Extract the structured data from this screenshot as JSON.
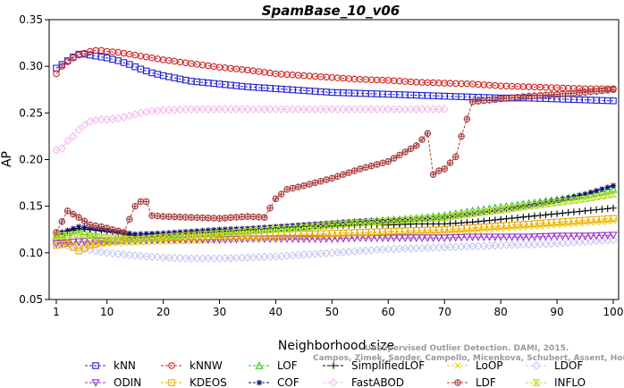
{
  "chart_data": {
    "type": "line",
    "title": "SpamBase_10_v06",
    "xlabel": "Neighborhood size",
    "ylabel": "AP",
    "xlim": [
      1,
      100
    ],
    "ylim": [
      0.05,
      0.35
    ],
    "xticks": [
      1,
      10,
      20,
      30,
      40,
      50,
      60,
      70,
      80,
      90,
      100
    ],
    "xtick_labels": [
      "1",
      "10",
      "20",
      "30",
      "40",
      "50",
      "60",
      "70",
      "80",
      "90",
      "100"
    ],
    "yticks": [
      0.05,
      0.1,
      0.15,
      0.2,
      0.25,
      0.3,
      0.35
    ],
    "ytick_labels": [
      "0.05",
      "0.10",
      "0.15",
      "0.20",
      "0.25",
      "0.30",
      "0.35"
    ],
    "grid": false,
    "legend_position": "bottom",
    "watermark_lines": [
      "Unsupervised Outlier Detection. DAMI, 2015.",
      "Campos, Zimek, Sander, Campello, Micenkova, Schubert, Assent, Houle"
    ],
    "series": [
      {
        "name": "kNN",
        "color": "#1f1fd6",
        "marker": "square",
        "x": [
          1,
          2,
          3,
          4,
          5,
          6,
          7,
          8,
          9,
          10,
          12,
          14,
          16,
          18,
          20,
          25,
          30,
          35,
          40,
          45,
          50,
          55,
          60,
          65,
          70,
          75,
          80,
          85,
          90,
          95,
          100
        ],
        "values": [
          0.298,
          0.302,
          0.306,
          0.31,
          0.313,
          0.313,
          0.312,
          0.311,
          0.31,
          0.309,
          0.306,
          0.302,
          0.297,
          0.293,
          0.29,
          0.284,
          0.281,
          0.278,
          0.276,
          0.274,
          0.272,
          0.271,
          0.27,
          0.269,
          0.268,
          0.267,
          0.266,
          0.266,
          0.265,
          0.264,
          0.263
        ]
      },
      {
        "name": "kNNW",
        "color": "#d41f1f",
        "marker": "circle",
        "x": [
          1,
          2,
          3,
          4,
          5,
          6,
          7,
          8,
          9,
          10,
          12,
          14,
          16,
          18,
          20,
          25,
          30,
          35,
          40,
          45,
          50,
          55,
          60,
          65,
          70,
          75,
          80,
          85,
          90,
          95,
          100
        ],
        "values": [
          0.292,
          0.3,
          0.305,
          0.309,
          0.312,
          0.314,
          0.316,
          0.317,
          0.317,
          0.316,
          0.315,
          0.313,
          0.311,
          0.309,
          0.307,
          0.303,
          0.299,
          0.296,
          0.292,
          0.29,
          0.288,
          0.286,
          0.285,
          0.283,
          0.282,
          0.281,
          0.279,
          0.278,
          0.277,
          0.276,
          0.276
        ]
      },
      {
        "name": "LOF",
        "color": "#22cc22",
        "marker": "triangle",
        "x": [
          1,
          5,
          10,
          15,
          20,
          25,
          30,
          35,
          40,
          45,
          50,
          55,
          60,
          65,
          70,
          75,
          80,
          85,
          90,
          95,
          100
        ],
        "values": [
          0.118,
          0.125,
          0.112,
          0.115,
          0.118,
          0.12,
          0.122,
          0.124,
          0.126,
          0.128,
          0.131,
          0.133,
          0.135,
          0.137,
          0.14,
          0.145,
          0.149,
          0.153,
          0.157,
          0.162,
          0.168
        ]
      },
      {
        "name": "SimplifiedLOF",
        "color": "#000000",
        "marker": "plus",
        "x": [
          1,
          5,
          10,
          15,
          20,
          25,
          30,
          35,
          40,
          45,
          50,
          55,
          60,
          65,
          70,
          75,
          80,
          85,
          90,
          95,
          100
        ],
        "values": [
          0.12,
          0.126,
          0.123,
          0.118,
          0.12,
          0.121,
          0.123,
          0.125,
          0.127,
          0.128,
          0.129,
          0.13,
          0.13,
          0.131,
          0.131,
          0.133,
          0.136,
          0.139,
          0.142,
          0.145,
          0.148
        ]
      },
      {
        "name": "LoOP",
        "color": "#e6d21a",
        "marker": "x",
        "x": [
          1,
          5,
          10,
          15,
          20,
          25,
          30,
          35,
          40,
          45,
          50,
          55,
          60,
          65,
          70,
          75,
          80,
          85,
          90,
          95,
          100
        ],
        "values": [
          0.115,
          0.108,
          0.11,
          0.111,
          0.112,
          0.113,
          0.114,
          0.115,
          0.116,
          0.117,
          0.118,
          0.119,
          0.12,
          0.121,
          0.122,
          0.124,
          0.126,
          0.128,
          0.13,
          0.132,
          0.134
        ]
      },
      {
        "name": "LDOF",
        "color": "#c8c8f0",
        "marker": "diamond",
        "x": [
          1,
          5,
          10,
          15,
          20,
          25,
          30,
          35,
          40,
          45,
          50,
          55,
          60,
          65,
          70,
          75,
          80,
          85,
          90,
          95,
          100
        ],
        "values": [
          0.11,
          0.105,
          0.1,
          0.097,
          0.095,
          0.094,
          0.094,
          0.095,
          0.096,
          0.098,
          0.1,
          0.102,
          0.104,
          0.105,
          0.106,
          0.107,
          0.108,
          0.109,
          0.11,
          0.112,
          0.114
        ]
      },
      {
        "name": "ODIN",
        "color": "#9a33cc",
        "marker": "triangle-down",
        "x": [
          1,
          5,
          10,
          15,
          20,
          25,
          30,
          35,
          40,
          45,
          50,
          55,
          60,
          65,
          70,
          75,
          80,
          85,
          90,
          95,
          100
        ],
        "values": [
          0.11,
          0.112,
          0.113,
          0.113,
          0.114,
          0.114,
          0.114,
          0.115,
          0.115,
          0.115,
          0.115,
          0.116,
          0.116,
          0.116,
          0.116,
          0.117,
          0.117,
          0.117,
          0.118,
          0.118,
          0.119
        ]
      },
      {
        "name": "KDEOS",
        "color": "#f0a800",
        "marker": "square",
        "x": [
          1,
          3,
          5,
          7,
          10,
          15,
          20,
          25,
          30,
          35,
          40,
          45,
          50,
          55,
          60,
          65,
          70,
          75,
          80,
          85,
          90,
          95,
          100
        ],
        "values": [
          0.108,
          0.11,
          0.102,
          0.108,
          0.112,
          0.115,
          0.116,
          0.117,
          0.118,
          0.118,
          0.119,
          0.12,
          0.121,
          0.122,
          0.123,
          0.124,
          0.125,
          0.127,
          0.129,
          0.131,
          0.133,
          0.135,
          0.137
        ]
      },
      {
        "name": "COF",
        "color": "#0f0f6e",
        "marker": "star",
        "x": [
          1,
          5,
          10,
          15,
          20,
          25,
          30,
          35,
          40,
          45,
          50,
          55,
          60,
          65,
          70,
          75,
          80,
          85,
          90,
          95,
          100
        ],
        "values": [
          0.12,
          0.128,
          0.124,
          0.12,
          0.121,
          0.123,
          0.125,
          0.126,
          0.128,
          0.13,
          0.132,
          0.134,
          0.135,
          0.136,
          0.138,
          0.142,
          0.146,
          0.151,
          0.156,
          0.163,
          0.172
        ]
      },
      {
        "name": "FastABOD",
        "color": "#f6b8f0",
        "marker": "diamond",
        "x": [
          1,
          2,
          3,
          4,
          5,
          6,
          7,
          8,
          9,
          10,
          12,
          14,
          16,
          18,
          20,
          25,
          30,
          35,
          40,
          45,
          50,
          55,
          60,
          65,
          70
        ],
        "values": [
          0.21,
          0.212,
          0.22,
          0.225,
          0.232,
          0.237,
          0.241,
          0.242,
          0.243,
          0.243,
          0.244,
          0.247,
          0.25,
          0.252,
          0.253,
          0.254,
          0.254,
          0.254,
          0.254,
          0.254,
          0.254,
          0.254,
          0.254,
          0.254,
          0.254
        ]
      },
      {
        "name": "LDF",
        "color": "#a83a3a",
        "marker": "circle-plus",
        "x": [
          1,
          3,
          5,
          7,
          9,
          11,
          13,
          15,
          16,
          17,
          18,
          20,
          25,
          30,
          35,
          38,
          40,
          42,
          45,
          50,
          55,
          60,
          65,
          67,
          68,
          69,
          70,
          72,
          73,
          75,
          80,
          85,
          90,
          95,
          100
        ],
        "values": [
          0.122,
          0.145,
          0.138,
          0.13,
          0.128,
          0.125,
          0.122,
          0.15,
          0.155,
          0.155,
          0.14,
          0.139,
          0.138,
          0.137,
          0.139,
          0.138,
          0.158,
          0.168,
          0.172,
          0.18,
          0.19,
          0.198,
          0.215,
          0.228,
          0.184,
          0.188,
          0.19,
          0.203,
          0.225,
          0.262,
          0.265,
          0.268,
          0.27,
          0.272,
          0.275
        ]
      },
      {
        "name": "INFLO",
        "color": "#b8dc2a",
        "marker": "hourglass",
        "x": [
          1,
          5,
          10,
          15,
          20,
          25,
          30,
          35,
          40,
          45,
          50,
          55,
          60,
          65,
          70,
          75,
          80,
          85,
          90,
          95,
          100
        ],
        "values": [
          0.118,
          0.12,
          0.116,
          0.114,
          0.117,
          0.119,
          0.121,
          0.123,
          0.125,
          0.127,
          0.13,
          0.132,
          0.134,
          0.136,
          0.138,
          0.142,
          0.146,
          0.15,
          0.154,
          0.158,
          0.163
        ]
      }
    ],
    "legend": [
      [
        "kNN",
        "kNNW",
        "LOF",
        "SimplifiedLOF",
        "LoOP",
        "LDOF"
      ],
      [
        "ODIN",
        "KDEOS",
        "COF",
        "FastABOD",
        "LDF",
        "INFLO"
      ]
    ]
  }
}
